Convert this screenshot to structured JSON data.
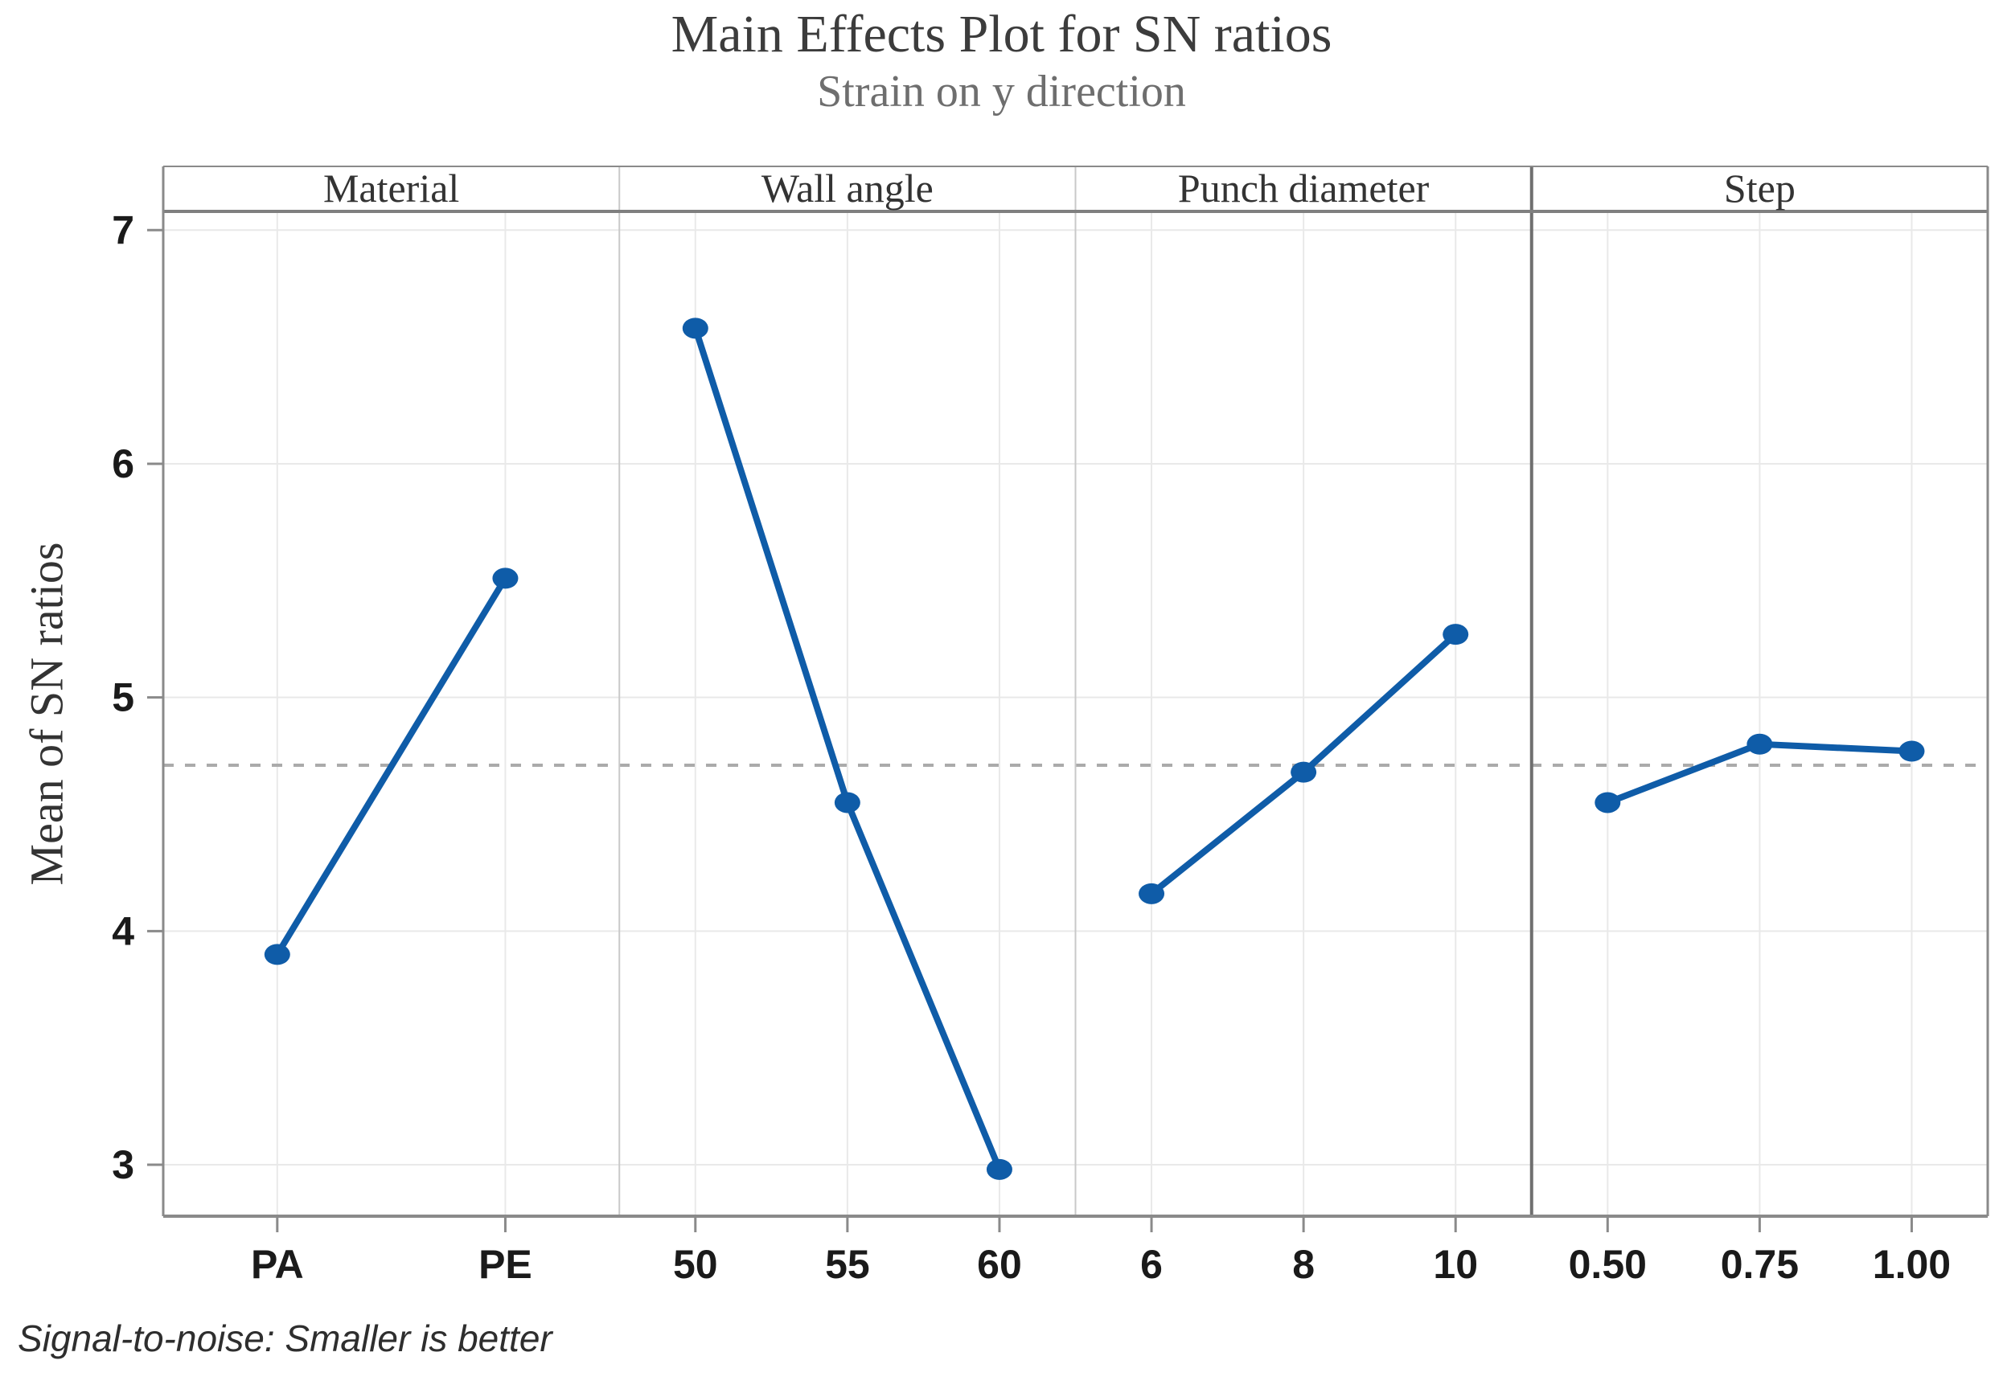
{
  "chart_data": {
    "type": "line",
    "title": "Main Effects Plot for SN ratios",
    "subtitle": "Strain on y direction",
    "ylabel": "Mean of SN ratios",
    "footnote": "Signal-to-noise: Smaller is better",
    "ylim": [
      2.78,
      7.08
    ],
    "yticks": [
      3,
      4,
      5,
      6,
      7
    ],
    "grid": true,
    "legend": false,
    "reference_line": {
      "value": 4.71,
      "style": "dashed",
      "meaning": "grand mean of SN ratios"
    },
    "panels": [
      {
        "label": "Material",
        "categories": [
          "PA",
          "PE"
        ],
        "values": [
          3.9,
          5.51
        ]
      },
      {
        "label": "Wall angle",
        "categories": [
          "50",
          "55",
          "60"
        ],
        "values": [
          6.58,
          4.55,
          2.98
        ]
      },
      {
        "label": "Punch diameter",
        "categories": [
          "6",
          "8",
          "10"
        ],
        "values": [
          4.16,
          4.68,
          5.27
        ]
      },
      {
        "label": "Step",
        "categories": [
          "0.50",
          "0.75",
          "1.00"
        ],
        "values": [
          4.55,
          4.8,
          4.77
        ]
      }
    ]
  },
  "colors": {
    "series": "#0F5CA8",
    "grid": "#E9E9E9",
    "axis": "#8A8A8A",
    "header_border": "#7F7F7F",
    "divider": "#C9C9C9",
    "divider_dark": "#6F6F6F",
    "reference": "#ABABAB",
    "title": "#3C3C3C",
    "subtitle": "#6E6E6E",
    "tick_label": "#1A1A1A",
    "header_label": "#333333",
    "footnote": "#2E2E2E"
  }
}
